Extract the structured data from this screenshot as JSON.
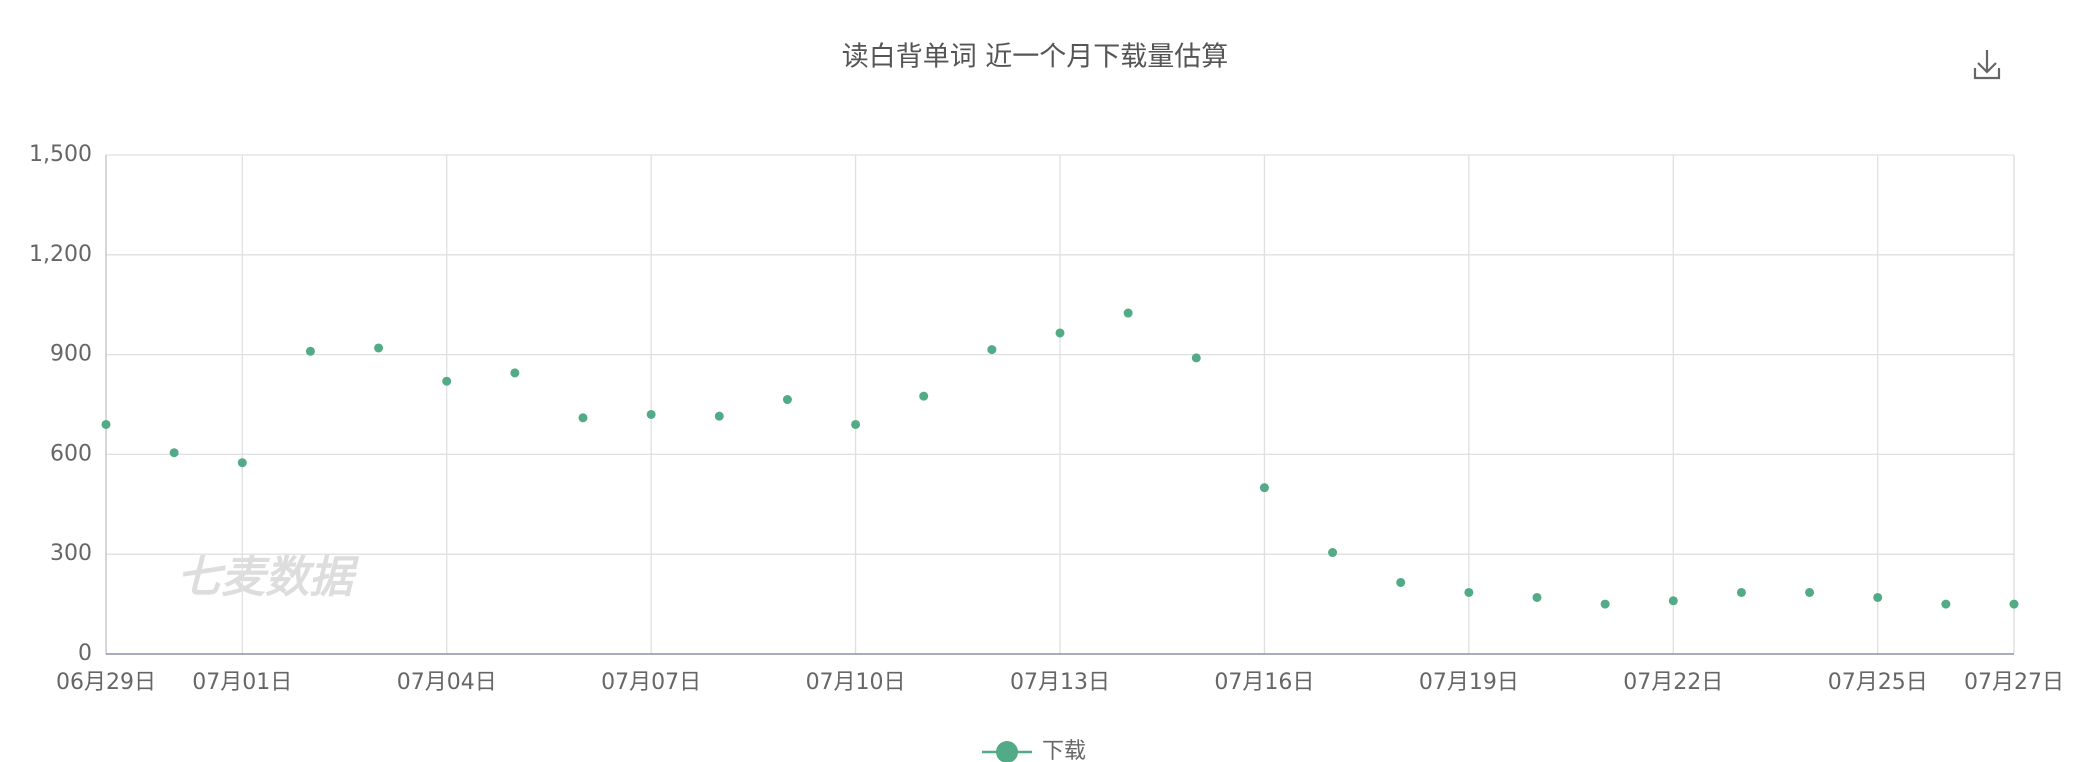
{
  "chart_data": {
    "type": "line",
    "title": "读白背单词 近一个月下载量估算",
    "watermark": "七麦数据",
    "categories": [
      "06月29日",
      null,
      "07月01日",
      null,
      null,
      "07月04日",
      null,
      null,
      "07月07日",
      null,
      null,
      "07月10日",
      null,
      null,
      "07月13日",
      null,
      null,
      "07月16日",
      null,
      null,
      "07月19日",
      null,
      null,
      "07月22日",
      null,
      null,
      "07月25日",
      null,
      "07月27日"
    ],
    "series": [
      {
        "name": "下载",
        "color": "#52ab86",
        "values": [
          690,
          605,
          575,
          910,
          920,
          820,
          845,
          710,
          720,
          715,
          765,
          690,
          775,
          915,
          965,
          1025,
          890,
          500,
          305,
          215,
          185,
          170,
          150,
          160,
          185,
          185,
          170,
          150,
          150
        ]
      }
    ],
    "ylim": [
      0,
      1500
    ],
    "yticks": [
      0,
      300,
      600,
      900,
      {
        "value": 1200,
        "label": "1,200"
      },
      {
        "value": 1500,
        "label": "1,500"
      }
    ],
    "grid": true,
    "legend": "bottom"
  }
}
